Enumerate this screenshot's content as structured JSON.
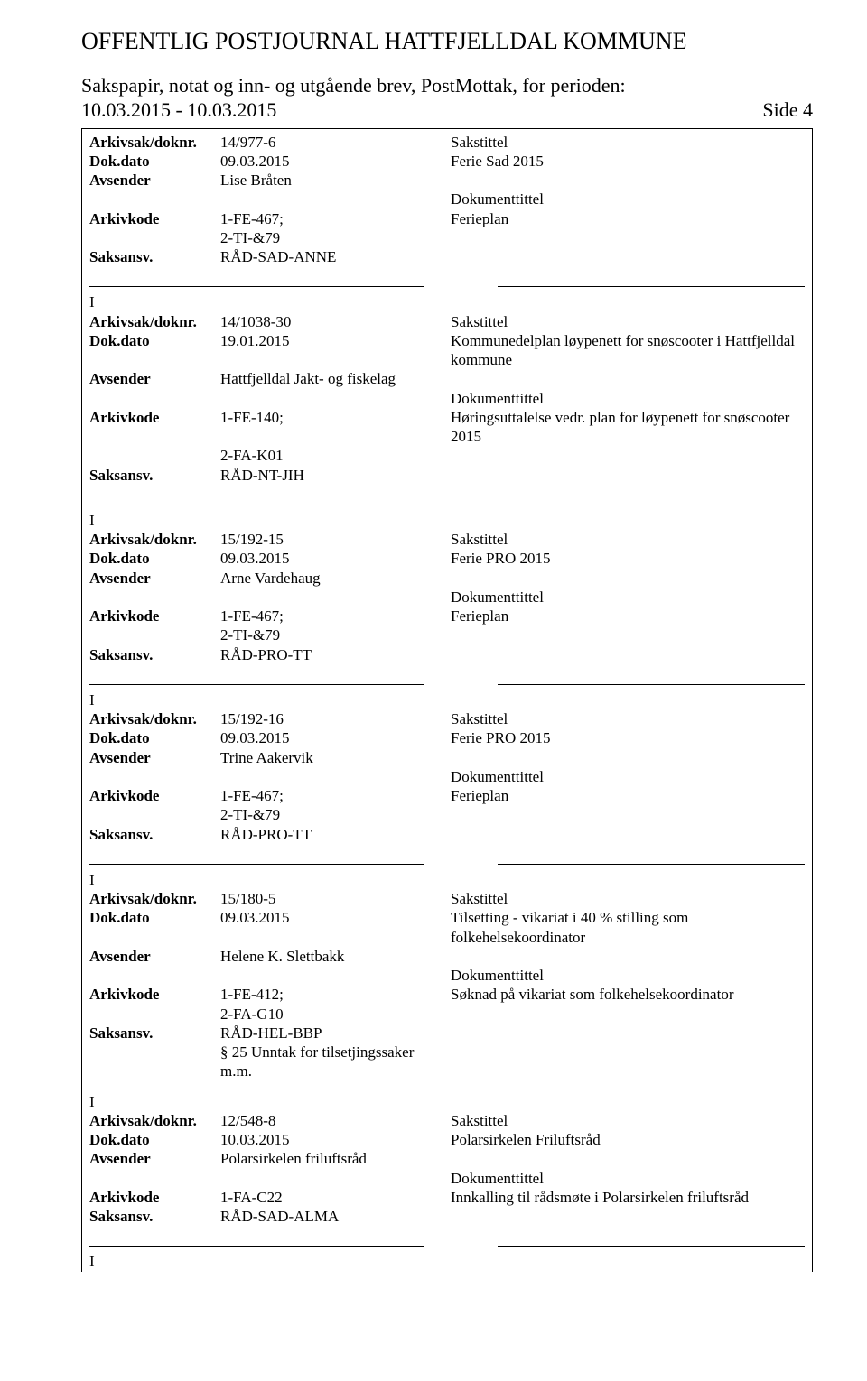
{
  "header": {
    "mainTitle": "OFFENTLIG POSTJOURNAL HATTFJELLDAL KOMMUNE",
    "subtitle": "Sakspapir, notat og inn- og utgående brev, PostMottak, for perioden: 10.03.2015 - 10.03.2015",
    "sideLabel": "Side 4"
  },
  "labels": {
    "arkivsak": "Arkivsak/doknr.",
    "dokdato": "Dok.dato",
    "avsender": "Avsender",
    "arkivkode": "Arkivkode",
    "saksansv": "Saksansv.",
    "sakstittel": "Sakstittel",
    "dokumenttittel": "Dokumenttittel",
    "iMarker": "I"
  },
  "entries": [
    {
      "doknr": "14/977-6",
      "dokdato": "09.03.2015",
      "sakstittel": "Ferie Sad 2015",
      "avsender": "Lise Bråten",
      "arkivkode1": "1-FE-467;",
      "arkivkode2": "2-TI-&79",
      "doktittel": "Ferieplan",
      "saksansv": "RÅD-SAD-ANNE",
      "extra1": "",
      "extra2": ""
    },
    {
      "doknr": "14/1038-30",
      "dokdato": "19.01.2015",
      "sakstittel": "Kommunedelplan løypenett for snøscooter i Hattfjelldal kommune",
      "avsender": "Hattfjelldal Jakt- og fiskelag",
      "arkivkode1": "1-FE-140;",
      "arkivkode2": "2-FA-K01",
      "doktittel": "Høringsuttalelse vedr. plan for løypenett for snøscooter 2015",
      "saksansv": "RÅD-NT-JIH",
      "extra1": "",
      "extra2": ""
    },
    {
      "doknr": "15/192-15",
      "dokdato": "09.03.2015",
      "sakstittel": "Ferie PRO 2015",
      "avsender": "Arne Vardehaug",
      "arkivkode1": "1-FE-467;",
      "arkivkode2": "2-TI-&79",
      "doktittel": "Ferieplan",
      "saksansv": "RÅD-PRO-TT",
      "extra1": "",
      "extra2": ""
    },
    {
      "doknr": "15/192-16",
      "dokdato": "09.03.2015",
      "sakstittel": "Ferie PRO 2015",
      "avsender": "Trine Aakervik",
      "arkivkode1": "1-FE-467;",
      "arkivkode2": "2-TI-&79",
      "doktittel": "Ferieplan",
      "saksansv": "RÅD-PRO-TT",
      "extra1": "",
      "extra2": ""
    },
    {
      "doknr": "15/180-5",
      "dokdato": "09.03.2015",
      "sakstittel": "Tilsetting - vikariat i 40 % stilling som folkehelsekoordinator",
      "avsender": "Helene K. Slettbakk",
      "arkivkode1": "1-FE-412;",
      "arkivkode2": "2-FA-G10",
      "doktittel": "Søknad på vikariat som folkehelsekoordinator",
      "saksansv": "RÅD-HEL-BBP",
      "extra1": "§ 25 Unntak for tilsetjingssaker",
      "extra2": "m.m."
    },
    {
      "doknr": "12/548-8",
      "dokdato": "10.03.2015",
      "sakstittel": "Polarsirkelen Friluftsråd",
      "avsender": "Polarsirkelen friluftsråd",
      "arkivkode1": "1-FA-C22",
      "arkivkode2": "",
      "doktittel": "Innkalling til rådsmøte i Polarsirkelen friluftsråd",
      "saksansv": "RÅD-SAD-ALMA",
      "extra1": "",
      "extra2": ""
    }
  ]
}
